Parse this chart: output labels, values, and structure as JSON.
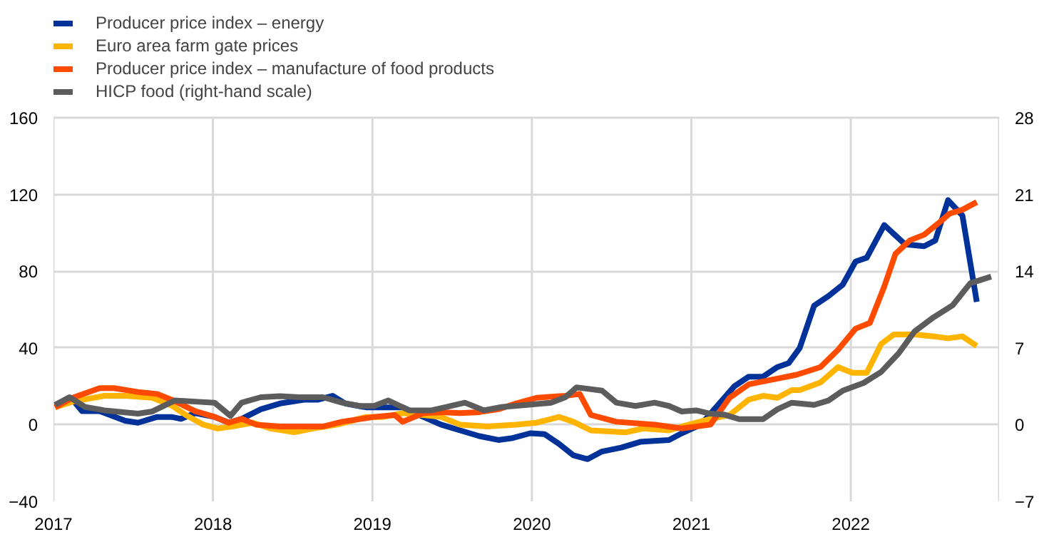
{
  "chart_data": {
    "type": "line",
    "xlim": [
      2017,
      2022.93
    ],
    "xticks": [
      {
        "value": 2017,
        "label": "2017"
      },
      {
        "value": 2018,
        "label": "2018"
      },
      {
        "value": 2019,
        "label": "2019"
      },
      {
        "value": 2020,
        "label": "2020"
      },
      {
        "value": 2021,
        "label": "2021"
      },
      {
        "value": 2022,
        "label": "2022"
      }
    ],
    "ylim": [
      -40,
      160
    ],
    "yticks": [
      -40,
      0,
      40,
      80,
      120,
      160
    ],
    "y2lim": [
      -7,
      28
    ],
    "y2ticks": [
      -7,
      0,
      7,
      14,
      21,
      28
    ],
    "grid": true,
    "legend": "top left",
    "line_style": "solid",
    "marker": "none",
    "series": [
      {
        "name": "Producer price index – energy",
        "color": "#003299",
        "x": [
          2017.01,
          2017.12,
          2017.18,
          2017.29,
          2017.45,
          2017.53,
          2017.65,
          2017.74,
          2017.8,
          2017.89,
          2018.01,
          2018.1,
          2018.18,
          2018.3,
          2018.42,
          2018.57,
          2018.66,
          2018.75,
          2018.83,
          2018.96,
          2019.07,
          2019.19,
          2019.32,
          2019.43,
          2019.55,
          2019.67,
          2019.79,
          2019.88,
          2019.99,
          2020.08,
          2020.17,
          2020.26,
          2020.35,
          2020.44,
          2020.56,
          2020.68,
          2020.86,
          2020.94,
          2021.06,
          2021.27,
          2021.36,
          2021.45,
          2021.54,
          2021.61,
          2021.68,
          2021.77,
          2021.86,
          2021.95,
          2022.03,
          2022.1,
          2022.21,
          2022.34,
          2022.46,
          2022.53,
          2022.61,
          2022.7,
          2022.79
        ],
        "values": [
          10,
          13,
          7,
          7,
          2,
          1,
          4,
          4,
          3,
          6,
          4,
          1,
          3,
          8,
          11,
          13,
          13,
          15,
          11,
          9,
          9,
          9,
          4,
          0,
          -3,
          -6,
          -8,
          -7,
          -4.5,
          -5,
          -10,
          -16,
          -18,
          -14,
          -12,
          -9,
          -8,
          -4.5,
          0,
          20,
          25,
          25,
          30,
          32,
          40,
          62,
          67,
          73,
          85,
          87,
          104,
          94,
          93,
          96,
          117,
          109,
          64
        ]
      },
      {
        "name": "Euro area farm gate prices",
        "color": "#ffb400",
        "x": [
          2017.01,
          2017.12,
          2017.32,
          2017.45,
          2017.62,
          2017.74,
          2017.83,
          2017.94,
          2018.03,
          2018.12,
          2018.25,
          2018.36,
          2018.51,
          2018.63,
          2018.78,
          2018.96,
          2019.07,
          2019.19,
          2019.32,
          2019.43,
          2019.55,
          2019.72,
          2019.9,
          2020.03,
          2020.17,
          2020.26,
          2020.37,
          2020.47,
          2020.59,
          2020.7,
          2020.86,
          2020.94,
          2021.12,
          2021.24,
          2021.36,
          2021.45,
          2021.54,
          2021.63,
          2021.68,
          2021.81,
          2021.92,
          2022.01,
          2022.1,
          2022.19,
          2022.27,
          2022.4,
          2022.52,
          2022.61,
          2022.7,
          2022.79
        ],
        "values": [
          9,
          12,
          15,
          15,
          14,
          10,
          5,
          0,
          -2,
          -1,
          1,
          -2,
          -4,
          -2,
          0,
          4,
          4,
          6,
          5,
          4,
          0,
          -1,
          0,
          1,
          4,
          1.5,
          -3,
          -3.5,
          -4,
          -2,
          -3,
          -1,
          3,
          5,
          13,
          15,
          14,
          18,
          18,
          22,
          30,
          27,
          27,
          42,
          47,
          47,
          46,
          45,
          46,
          41
        ]
      },
      {
        "name": "Producer price index – manufacture of food products",
        "color": "#ff4b00",
        "x": [
          2017.01,
          2017.12,
          2017.29,
          2017.38,
          2017.53,
          2017.65,
          2017.74,
          2017.89,
          2018.01,
          2018.1,
          2018.18,
          2018.27,
          2018.42,
          2018.6,
          2018.69,
          2018.81,
          2019.01,
          2019.14,
          2019.19,
          2019.32,
          2019.43,
          2019.55,
          2019.67,
          2019.79,
          2019.9,
          2020.03,
          2020.21,
          2020.3,
          2020.37,
          2020.53,
          2020.77,
          2020.94,
          2021.12,
          2021.24,
          2021.36,
          2021.54,
          2021.66,
          2021.81,
          2021.92,
          2022.03,
          2022.12,
          2022.21,
          2022.28,
          2022.37,
          2022.46,
          2022.55,
          2022.62,
          2022.7,
          2022.79
        ],
        "values": [
          9,
          14,
          19,
          19,
          17,
          16,
          13,
          7,
          4,
          1,
          3,
          0,
          -1,
          -1,
          -1,
          1.5,
          4,
          5,
          1.5,
          6,
          6.5,
          6,
          6.5,
          8,
          11,
          14,
          15,
          16,
          5,
          1.5,
          0,
          -2,
          0,
          14,
          21,
          24,
          26,
          30,
          39,
          50,
          53,
          72,
          89,
          96,
          99,
          105,
          110,
          112,
          116
        ]
      },
      {
        "name": "HICP food (right-hand scale)",
        "color": "#5c5c5c",
        "axis": "y2",
        "x": [
          2017.01,
          2017.1,
          2017.2,
          2017.32,
          2017.53,
          2017.62,
          2017.76,
          2017.89,
          2018.01,
          2018.11,
          2018.18,
          2018.3,
          2018.42,
          2018.54,
          2018.69,
          2018.81,
          2018.92,
          2019.01,
          2019.1,
          2019.23,
          2019.37,
          2019.46,
          2019.58,
          2019.7,
          2019.81,
          2019.97,
          2020.12,
          2020.21,
          2020.28,
          2020.44,
          2020.53,
          2020.65,
          2020.77,
          2020.86,
          2020.94,
          2021.03,
          2021.12,
          2021.21,
          2021.3,
          2021.45,
          2021.54,
          2021.63,
          2021.77,
          2021.86,
          2021.95,
          2022.08,
          2022.19,
          2022.3,
          2022.4,
          2022.52,
          2022.64,
          2022.75,
          2022.88
        ],
        "values": [
          1.8,
          2.5,
          1.6,
          1.3,
          1.0,
          1.2,
          2.2,
          2.1,
          2.0,
          0.8,
          2.0,
          2.5,
          2.6,
          2.5,
          2.5,
          2.0,
          1.7,
          1.7,
          2.2,
          1.3,
          1.3,
          1.6,
          2.0,
          1.3,
          1.6,
          1.8,
          2.0,
          2.5,
          3.4,
          3.1,
          2.0,
          1.7,
          2.0,
          1.7,
          1.2,
          1.3,
          1.0,
          0.9,
          0.5,
          0.5,
          1.4,
          2.0,
          1.8,
          2.2,
          3.1,
          3.8,
          4.8,
          6.5,
          8.5,
          9.8,
          10.9,
          12.9,
          13.5
        ]
      }
    ]
  }
}
